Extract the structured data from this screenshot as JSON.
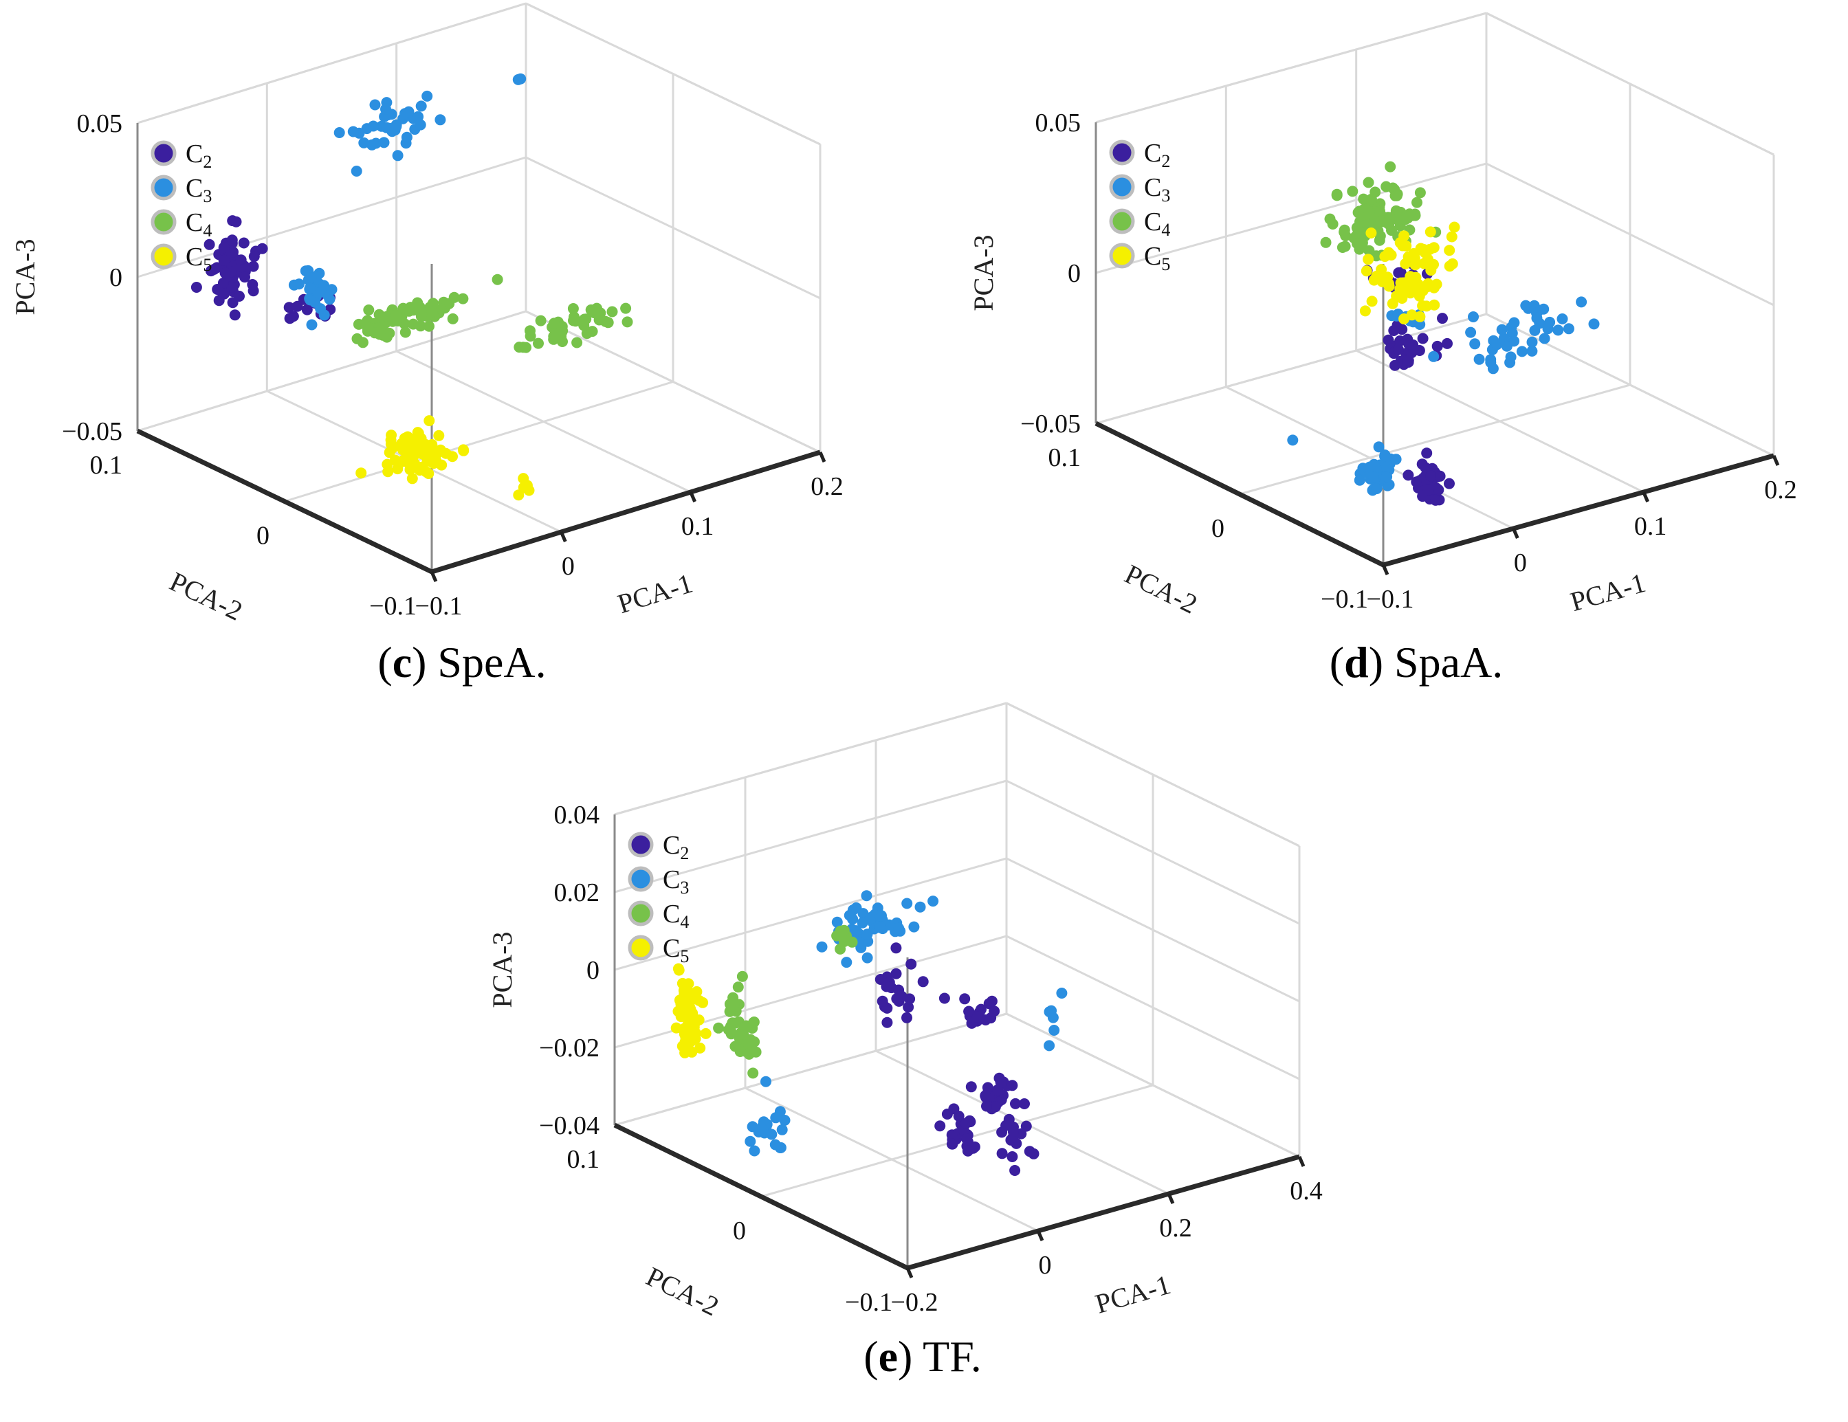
{
  "chart_data": [
    {
      "type": "scatter",
      "subplot": "c",
      "caption_letter": "c",
      "caption_text": " SpeA.",
      "xlabel": "PCA-1",
      "ylabel": "PCA-2",
      "zlabel": "PCA-3",
      "xticks": [
        "−0.1",
        "0",
        "0.1",
        "0.2"
      ],
      "yticks": [
        "0.1",
        "0",
        "−0.1"
      ],
      "zticks": [
        "0.05",
        "0",
        "−0.05"
      ],
      "xlim": [
        -0.1,
        0.2
      ],
      "ylim": [
        -0.1,
        0.1
      ],
      "zlim": [
        -0.05,
        0.05
      ],
      "grid": true,
      "legend_position": "top-left",
      "legend": [
        {
          "base": "C",
          "sub": "2",
          "color": "#3b1f9e"
        },
        {
          "base": "C",
          "sub": "3",
          "color": "#2b8fe0"
        },
        {
          "base": "C",
          "sub": "4",
          "color": "#77c24a"
        },
        {
          "base": "C",
          "sub": "5",
          "color": "#f5f000"
        }
      ],
      "series": [
        {
          "name": "C2",
          "clusters": [
            {
              "x": -0.05,
              "y": 0.08,
              "z": 0.0,
              "spread": [
                0.012,
                0.008,
                0.012
              ],
              "count": 60
            },
            {
              "x": -0.02,
              "y": 0.05,
              "z": -0.008,
              "spread": [
                0.02,
                0.01,
                0.003
              ],
              "count": 14
            }
          ]
        },
        {
          "name": "C3",
          "clusters": [
            {
              "x": -0.02,
              "y": 0.05,
              "z": -0.004,
              "spread": [
                0.008,
                0.008,
                0.006
              ],
              "count": 30
            },
            {
              "x": 0.06,
              "y": 0.07,
              "z": 0.034,
              "spread": [
                0.03,
                0.01,
                0.008
              ],
              "count": 36
            },
            {
              "x": 0.17,
              "y": 0.08,
              "z": 0.034,
              "spread": [
                0.006,
                0.002,
                0.002
              ],
              "count": 2
            }
          ]
        },
        {
          "name": "C4",
          "clusters": [
            {
              "x": 0.02,
              "y": 0.02,
              "z": -0.01,
              "spread": [
                0.04,
                0.01,
                0.003
              ],
              "count": 70
            },
            {
              "x": 0.1,
              "y": -0.02,
              "z": -0.014,
              "spread": [
                0.03,
                0.01,
                0.004
              ],
              "count": 40
            }
          ]
        },
        {
          "name": "C5",
          "clusters": [
            {
              "x": -0.02,
              "y": -0.02,
              "z": -0.04,
              "spread": [
                0.02,
                0.015,
                0.005
              ],
              "count": 70
            },
            {
              "x": 0.02,
              "y": -0.06,
              "z": -0.046,
              "spread": [
                0.006,
                0.005,
                0.003
              ],
              "count": 5
            }
          ]
        }
      ]
    },
    {
      "type": "scatter",
      "subplot": "d",
      "caption_letter": "d",
      "caption_text": " SpaA.",
      "xlabel": "PCA-1",
      "ylabel": "PCA-2",
      "zlabel": "PCA-3",
      "xticks": [
        "−0.1",
        "0",
        "0.1",
        "0.2"
      ],
      "yticks": [
        "0.1",
        "0",
        "−0.1"
      ],
      "zticks": [
        "0.05",
        "0",
        "−0.05"
      ],
      "xlim": [
        -0.1,
        0.2
      ],
      "ylim": [
        -0.1,
        0.1
      ],
      "zlim": [
        -0.05,
        0.05
      ],
      "grid": true,
      "legend_position": "top-left",
      "legend": [
        {
          "base": "C",
          "sub": "2",
          "color": "#3b1f9e"
        },
        {
          "base": "C",
          "sub": "3",
          "color": "#2b8fe0"
        },
        {
          "base": "C",
          "sub": "4",
          "color": "#77c24a"
        },
        {
          "base": "C",
          "sub": "5",
          "color": "#f5f000"
        }
      ],
      "series": [
        {
          "name": "C2",
          "clusters": [
            {
              "x": -0.01,
              "y": -0.05,
              "z": -0.045,
              "spread": [
                0.01,
                0.008,
                0.006
              ],
              "count": 50
            },
            {
              "x": 0.05,
              "y": 0.02,
              "z": -0.024,
              "spread": [
                0.02,
                0.01,
                0.006
              ],
              "count": 30
            },
            {
              "x": 0.08,
              "y": 0.05,
              "z": -0.012,
              "spread": [
                0.02,
                0.008,
                0.003
              ],
              "count": 16
            }
          ]
        },
        {
          "name": "C3",
          "clusters": [
            {
              "x": -0.04,
              "y": -0.04,
              "z": -0.04,
              "spread": [
                0.01,
                0.006,
                0.005
              ],
              "count": 40
            },
            {
              "x": 0.14,
              "y": 0.02,
              "z": -0.03,
              "spread": [
                0.04,
                0.02,
                0.006
              ],
              "count": 40
            },
            {
              "x": 0.05,
              "y": 0.02,
              "z": -0.016,
              "spread": [
                0.01,
                0.008,
                0.004
              ],
              "count": 14
            },
            {
              "x": -0.08,
              "y": -0.02,
              "z": -0.03,
              "spread": [
                0.003,
                0.002,
                0.002
              ],
              "count": 1
            }
          ]
        },
        {
          "name": "C4",
          "clusters": [
            {
              "x": 0.06,
              "y": 0.05,
              "z": 0.01,
              "spread": [
                0.03,
                0.01,
                0.01
              ],
              "count": 90
            }
          ]
        },
        {
          "name": "C5",
          "clusters": [
            {
              "x": 0.02,
              "y": -0.01,
              "z": 0.012,
              "spread": [
                0.03,
                0.01,
                0.014
              ],
              "count": 70
            }
          ]
        }
      ]
    },
    {
      "type": "scatter",
      "subplot": "e",
      "caption_letter": "e",
      "caption_text": " TF.",
      "xlabel": "PCA-1",
      "ylabel": "PCA-2",
      "zlabel": "PCA-3",
      "xticks": [
        "−0.2",
        "0",
        "0.2",
        "0.4"
      ],
      "yticks": [
        "0.1",
        "0",
        "−0.1"
      ],
      "zticks": [
        "0.04",
        "0.02",
        "0",
        "−0.02",
        "−0.04"
      ],
      "xlim": [
        -0.2,
        0.4
      ],
      "ylim": [
        -0.1,
        0.1
      ],
      "zlim": [
        -0.04,
        0.04
      ],
      "grid": true,
      "legend_position": "top-left",
      "legend": [
        {
          "base": "C",
          "sub": "2",
          "color": "#3b1f9e"
        },
        {
          "base": "C",
          "sub": "3",
          "color": "#2b8fe0"
        },
        {
          "base": "C",
          "sub": "4",
          "color": "#77c24a"
        },
        {
          "base": "C",
          "sub": "5",
          "color": "#f5f000"
        }
      ],
      "series": [
        {
          "name": "C2",
          "clusters": [
            {
              "x": 0.05,
              "y": 0.02,
              "z": -0.004,
              "spread": [
                0.02,
                0.01,
                0.008
              ],
              "count": 20
            },
            {
              "x": 0.12,
              "y": 0.0,
              "z": -0.008,
              "spread": [
                0.03,
                0.008,
                0.004
              ],
              "count": 16
            },
            {
              "x": 0.06,
              "y": -0.02,
              "z": -0.032,
              "spread": [
                0.02,
                0.008,
                0.004
              ],
              "count": 25
            },
            {
              "x": 0.12,
              "y": -0.02,
              "z": -0.026,
              "spread": [
                0.02,
                0.01,
                0.004
              ],
              "count": 25
            },
            {
              "x": 0.1,
              "y": -0.04,
              "z": -0.034,
              "spread": [
                0.01,
                0.01,
                0.006
              ],
              "count": 14
            }
          ]
        },
        {
          "name": "C3",
          "clusters": [
            {
              "x": 0.06,
              "y": 0.04,
              "z": 0.01,
              "spread": [
                0.05,
                0.01,
                0.005
              ],
              "count": 50
            },
            {
              "x": 0.2,
              "y": -0.02,
              "z": -0.006,
              "spread": [
                0.03,
                0.01,
                0.006
              ],
              "count": 6
            },
            {
              "x": -0.1,
              "y": 0.04,
              "z": -0.036,
              "spread": [
                0.02,
                0.01,
                0.006
              ],
              "count": 20
            }
          ]
        },
        {
          "name": "C4",
          "clusters": [
            {
              "x": 0.04,
              "y": 0.05,
              "z": 0.006,
              "spread": [
                0.008,
                0.008,
                0.003
              ],
              "count": 8
            },
            {
              "x": -0.12,
              "y": 0.05,
              "z": -0.01,
              "spread": [
                0.015,
                0.01,
                0.008
              ],
              "count": 40
            }
          ]
        },
        {
          "name": "C5",
          "clusters": [
            {
              "x": -0.2,
              "y": 0.05,
              "z": -0.004,
              "spread": [
                0.01,
                0.006,
                0.01
              ],
              "count": 70
            }
          ]
        }
      ]
    }
  ]
}
